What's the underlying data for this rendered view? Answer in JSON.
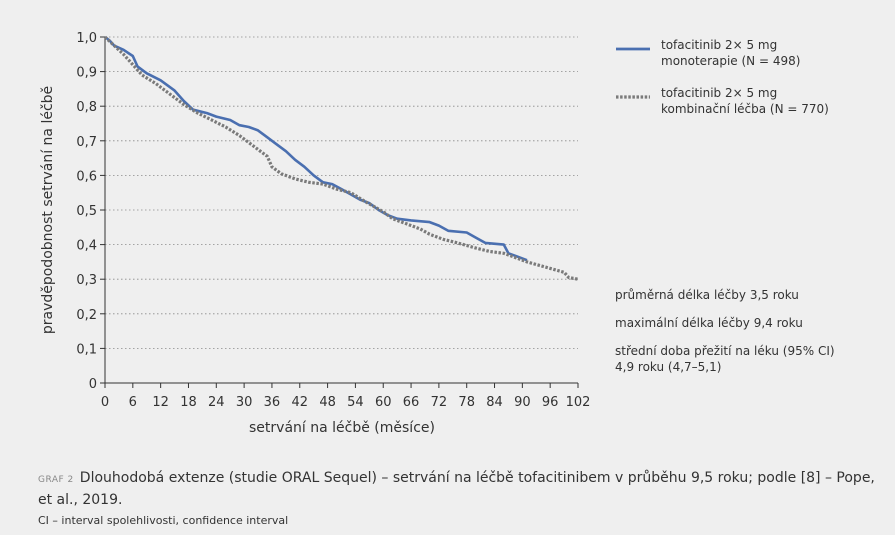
{
  "chart_data": {
    "type": "line",
    "title": "",
    "xlabel": "setrvání na léčbě (měsíce)",
    "ylabel": "pravděpodobnost setrvání na léčbě",
    "xlim": [
      0,
      102
    ],
    "ylim": [
      0,
      1.0
    ],
    "x_ticks": [
      "0",
      "6",
      "12",
      "18",
      "24",
      "30",
      "36",
      "42",
      "48",
      "54",
      "60",
      "66",
      "72",
      "78",
      "84",
      "90",
      "96",
      "102"
    ],
    "y_ticks": [
      "0",
      "0,1",
      "0,2",
      "0,3",
      "0,4",
      "0,5",
      "0,6",
      "0,7",
      "0,8",
      "0,9",
      "1,0"
    ],
    "grid": "horizontal-dotted",
    "legend_position": "top-right",
    "series": [
      {
        "name": "tofacitinib 2× 5 mg monoterapie (N = 498)",
        "legend_line1": "tofacitinib 2× 5 mg",
        "legend_line2": "monoterapie (N = 498)",
        "color": "#4a6fb0",
        "style": "solid",
        "points": [
          [
            0,
            1.0
          ],
          [
            1,
            0.99
          ],
          [
            2,
            0.975
          ],
          [
            4,
            0.963
          ],
          [
            6,
            0.945
          ],
          [
            7,
            0.915
          ],
          [
            9,
            0.895
          ],
          [
            12,
            0.875
          ],
          [
            15,
            0.845
          ],
          [
            17,
            0.815
          ],
          [
            19,
            0.79
          ],
          [
            22,
            0.78
          ],
          [
            24,
            0.77
          ],
          [
            27,
            0.76
          ],
          [
            29,
            0.745
          ],
          [
            31,
            0.74
          ],
          [
            33,
            0.73
          ],
          [
            35,
            0.71
          ],
          [
            37,
            0.69
          ],
          [
            39,
            0.67
          ],
          [
            41,
            0.645
          ],
          [
            43,
            0.625
          ],
          [
            45,
            0.6
          ],
          [
            47,
            0.58
          ],
          [
            49,
            0.575
          ],
          [
            51,
            0.56
          ],
          [
            53,
            0.545
          ],
          [
            55,
            0.53
          ],
          [
            57,
            0.52
          ],
          [
            59,
            0.5
          ],
          [
            61,
            0.485
          ],
          [
            63,
            0.475
          ],
          [
            66,
            0.47
          ],
          [
            70,
            0.465
          ],
          [
            72,
            0.455
          ],
          [
            74,
            0.44
          ],
          [
            78,
            0.435
          ],
          [
            80,
            0.42
          ],
          [
            82,
            0.405
          ],
          [
            86,
            0.4
          ],
          [
            87,
            0.375
          ],
          [
            89,
            0.365
          ],
          [
            91,
            0.355
          ]
        ]
      },
      {
        "name": "tofacitinib 2× 5 mg kombinační léčba (N = 770)",
        "legend_line1": "tofacitinib 2× 5 mg",
        "legend_line2": "kombinační léčba (N = 770)",
        "color": "#7a7a7a",
        "style": "dotted",
        "points": [
          [
            0,
            1.0
          ],
          [
            2,
            0.975
          ],
          [
            4,
            0.95
          ],
          [
            6,
            0.92
          ],
          [
            8,
            0.89
          ],
          [
            11,
            0.865
          ],
          [
            14,
            0.835
          ],
          [
            17,
            0.805
          ],
          [
            20,
            0.78
          ],
          [
            23,
            0.76
          ],
          [
            26,
            0.74
          ],
          [
            29,
            0.715
          ],
          [
            32,
            0.685
          ],
          [
            35,
            0.655
          ],
          [
            36,
            0.625
          ],
          [
            38,
            0.605
          ],
          [
            41,
            0.59
          ],
          [
            44,
            0.58
          ],
          [
            47,
            0.575
          ],
          [
            50,
            0.56
          ],
          [
            53,
            0.55
          ],
          [
            56,
            0.525
          ],
          [
            58,
            0.51
          ],
          [
            60,
            0.495
          ],
          [
            62,
            0.475
          ],
          [
            65,
            0.46
          ],
          [
            68,
            0.445
          ],
          [
            70,
            0.43
          ],
          [
            73,
            0.415
          ],
          [
            76,
            0.405
          ],
          [
            80,
            0.39
          ],
          [
            83,
            0.38
          ],
          [
            86,
            0.375
          ],
          [
            88,
            0.365
          ],
          [
            91,
            0.35
          ],
          [
            95,
            0.335
          ],
          [
            99,
            0.32
          ],
          [
            100,
            0.305
          ],
          [
            102,
            0.3
          ]
        ]
      }
    ]
  },
  "stats": {
    "mean_duration": "průměrná délka léčby 3,5 roku",
    "max_duration": "maximální délka léčby 9,4 roku",
    "median_label": "střední doba přežití na léku (95% CI)",
    "median_value": "4,9 roku (4,7–5,1)"
  },
  "caption": {
    "tag": "GRAF 2",
    "text": "Dlouhodobá extenze (studie ORAL Sequel) – setrvání na léčbě tofacitinibem v průběhu 9,5 roku; podle [8] – Pope, et al., 2019."
  },
  "note": "CI – interval spolehlivosti, confidence interval"
}
